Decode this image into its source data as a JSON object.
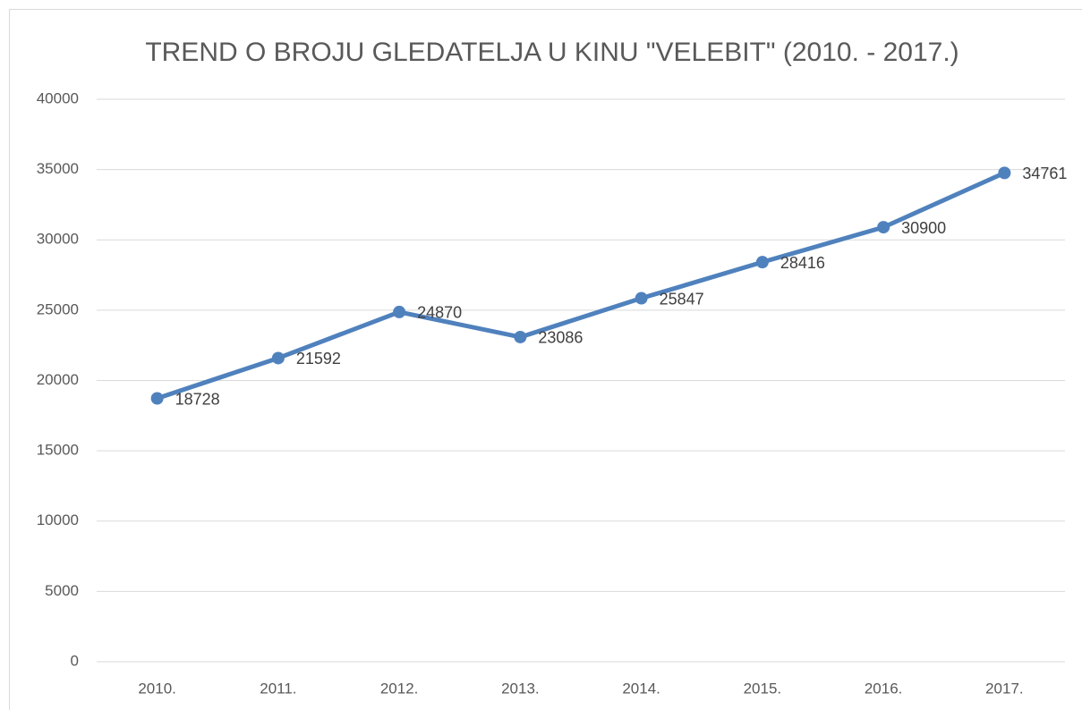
{
  "chart_data": {
    "type": "line",
    "title": "TREND O BROJU GLEDATELJA U KINU \"VELEBIT\" (2010. - 2017.)",
    "categories": [
      "2010.",
      "2011.",
      "2012.",
      "2013.",
      "2014.",
      "2015.",
      "2016.",
      "2017."
    ],
    "values": [
      18728,
      21592,
      24870,
      23086,
      25847,
      28416,
      30900,
      34761
    ],
    "color": "#4f81bd",
    "ylim": [
      0,
      40000
    ],
    "yticks": [
      0,
      5000,
      10000,
      15000,
      20000,
      25000,
      30000,
      35000,
      40000
    ],
    "grid": true
  }
}
